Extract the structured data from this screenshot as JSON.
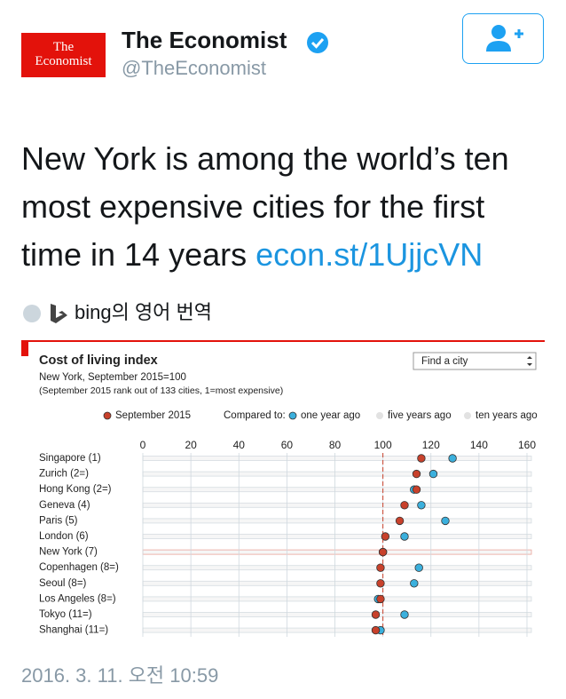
{
  "tweet": {
    "logo_line1": "The",
    "logo_line2": "Economist",
    "name": "The Economist",
    "handle": "@TheEconomist",
    "text": "New York is among the world’s ten most expensive cities for the first time in 14 years ",
    "link": "econ.st/1UjjcVN",
    "translation": "bing의 영어 번역",
    "timestamp": "2016. 3. 11. 오전 10:59"
  },
  "chart_data": {
    "type": "dot",
    "title": "Cost of living index",
    "subtitle": "New York, September 2015=100",
    "note": "(September 2015 rank out of 133 cities, 1=most expensive)",
    "search_placeholder": "Find a city",
    "compared_to_label": "Compared to:",
    "categories": [
      "Singapore (1)",
      "Zurich (2=)",
      "Hong Kong (2=)",
      "Geneva (4)",
      "Paris (5)",
      "London (6)",
      "New York (7)",
      "Copenhagen (8=)",
      "Seoul (8=)",
      "Los Angeles (8=)",
      "Tokyo (11=)",
      "Shanghai (11=)"
    ],
    "series": [
      {
        "name": "September 2015",
        "color": "#c8412b",
        "values": [
          116,
          114,
          114,
          109,
          107,
          101,
          100,
          99,
          99,
          99,
          97,
          97
        ]
      },
      {
        "name": "one year ago",
        "color": "#3bb0dd",
        "values": [
          129,
          121,
          113,
          116,
          126,
          109,
          100,
          115,
          113,
          98,
          109,
          99
        ]
      }
    ],
    "inactive_series": [
      {
        "name": "five years ago",
        "color": "#e2e2e2"
      },
      {
        "name": "ten years ago",
        "color": "#e2e2e2"
      }
    ],
    "xlim": [
      0,
      160
    ],
    "xticks": [
      0,
      20,
      40,
      60,
      80,
      100,
      120,
      140,
      160
    ],
    "grid": true,
    "highlight_index": 6
  }
}
